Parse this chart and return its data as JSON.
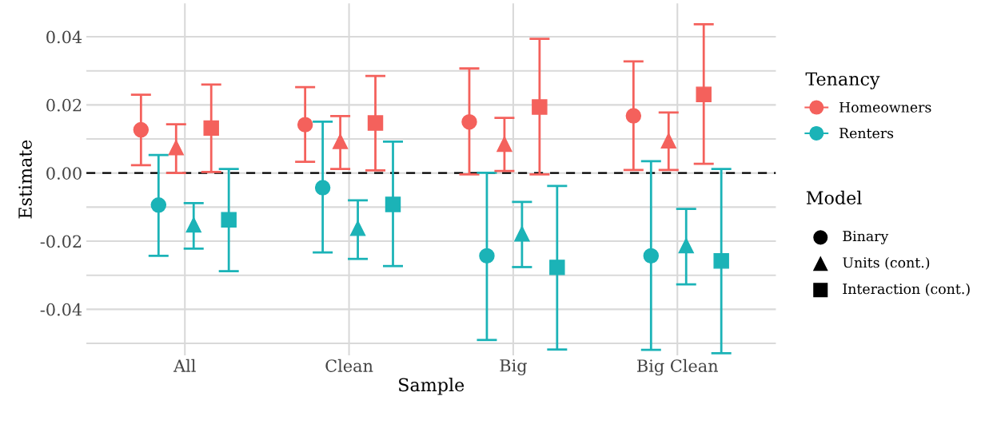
{
  "chart_data": {
    "type": "scatter",
    "xlabel": "Sample",
    "ylabel": "Estimate",
    "categories": [
      "All",
      "Clean",
      "Big",
      "Big Clean"
    ],
    "series": [
      {
        "name": "Homeowners",
        "color": "#f4615c",
        "marker": "circle",
        "values": [
          0.0127,
          0.0142,
          0.015,
          0.0168
        ],
        "errors": [
          [
            0.0023,
            0.023
          ],
          [
            0.0033,
            0.0252
          ],
          [
            -0.0004,
            0.0307
          ],
          [
            0.0009,
            0.0328
          ]
        ]
      },
      {
        "name": "Renters",
        "color": "#1bb3b7",
        "marker": "circle",
        "values": [
          -0.0094,
          -0.0043,
          -0.0243,
          -0.0243
        ],
        "errors": [
          [
            -0.0243,
            0.0053
          ],
          [
            -0.0233,
            0.0151
          ],
          [
            -0.049,
            0.0001
          ],
          [
            -0.0519,
            0.0035
          ]
        ]
      },
      {
        "color": "#f4615c",
        "marker": "triangle",
        "values": [
          0.0075,
          0.0093,
          0.0085,
          0.0095
        ],
        "errors": [
          [
            0.0,
            0.0143
          ],
          [
            0.0012,
            0.0167
          ],
          [
            0.0006,
            0.0162
          ],
          [
            0.0009,
            0.0178
          ]
        ]
      },
      {
        "color": "#1bb3b7",
        "marker": "triangle",
        "values": [
          -0.0152,
          -0.0162,
          -0.0178,
          -0.0213
        ],
        "errors": [
          [
            -0.0222,
            -0.0088
          ],
          [
            -0.0252,
            -0.008
          ],
          [
            -0.0276,
            -0.0085
          ],
          [
            -0.0327,
            -0.0105
          ]
        ]
      },
      {
        "color": "#f4615c",
        "marker": "square",
        "values": [
          0.0132,
          0.0147,
          0.0194,
          0.0231
        ],
        "errors": [
          [
            0.0003,
            0.026
          ],
          [
            0.0008,
            0.0285
          ],
          [
            -0.0004,
            0.0394
          ],
          [
            0.0027,
            0.0437
          ]
        ]
      },
      {
        "color": "#1bb3b7",
        "marker": "square",
        "values": [
          -0.0137,
          -0.0092,
          -0.0277,
          -0.0258
        ],
        "errors": [
          [
            -0.0288,
            0.0012
          ],
          [
            -0.0273,
            0.0092
          ],
          [
            -0.0518,
            -0.0038
          ],
          [
            -0.0529,
            0.0012
          ]
        ]
      }
    ],
    "ylim": [
      -0.0535,
      0.0498
    ],
    "yticks": [
      {
        "value": -0.05,
        "label": null
      },
      -0.04,
      {
        "value": -0.03,
        "label": null
      },
      -0.02,
      {
        "value": -0.01,
        "label": null
      },
      {
        "value": 0.0,
        "label": "0.00"
      },
      {
        "value": 0.01,
        "label": null
      },
      0.02,
      {
        "value": 0.03,
        "label": null
      },
      0.04
    ],
    "ref_lines": [
      {
        "axis": "y",
        "value": 0,
        "color": "#000000",
        "line_style": "dashed"
      }
    ],
    "grid": true,
    "legend": "right",
    "legend_title": "Tenancy",
    "annotations": [
      "Model",
      "Binary",
      "Units (cont.)",
      "Interaction (cont.)"
    ]
  }
}
